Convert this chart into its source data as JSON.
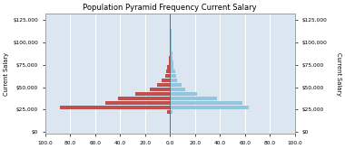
{
  "title": "Population Pyramid Frequency Current Salary",
  "ylabel_left": "Current Salary",
  "ylabel_right": "Current Salary",
  "female_color": "#c0504d",
  "male_color": "#92c5de",
  "bg_color": "#dce6f0",
  "grid_color": "#ffffff",
  "ytick_vals": [
    0,
    25000,
    50000,
    75000,
    100000,
    125000
  ],
  "ytick_labels": [
    "$0",
    "$25,000",
    "$50,000",
    "$75,000",
    "$100,000",
    "$125,000"
  ],
  "xtick_vals": [
    -100,
    -80,
    -60,
    -40,
    -20,
    0,
    20,
    40,
    60,
    80,
    100
  ],
  "xtick_labels": [
    "100.0",
    "80.0",
    "60.0",
    "40.0",
    "20.0",
    "0.0",
    "20.0",
    "40.0",
    "60.0",
    "80.0",
    "100.0"
  ],
  "bin_centers": [
    2500,
    7500,
    12500,
    17500,
    22500,
    27500,
    32500,
    37500,
    42500,
    47500,
    52500,
    57500,
    62500,
    67500,
    72500,
    77500,
    82500,
    87500,
    92500,
    97500,
    102500,
    107500,
    112500,
    117500,
    122500
  ],
  "female_counts": [
    0,
    0,
    0,
    0,
    2,
    88,
    52,
    42,
    28,
    16,
    10,
    7,
    4,
    3,
    2,
    1,
    1,
    0,
    0,
    0,
    0,
    0,
    0,
    0,
    0
  ],
  "male_counts": [
    0,
    0,
    0,
    0,
    2,
    63,
    58,
    38,
    22,
    12,
    9,
    6,
    5,
    4,
    3,
    3,
    2,
    2,
    1,
    1,
    1,
    1,
    1,
    0,
    0
  ]
}
